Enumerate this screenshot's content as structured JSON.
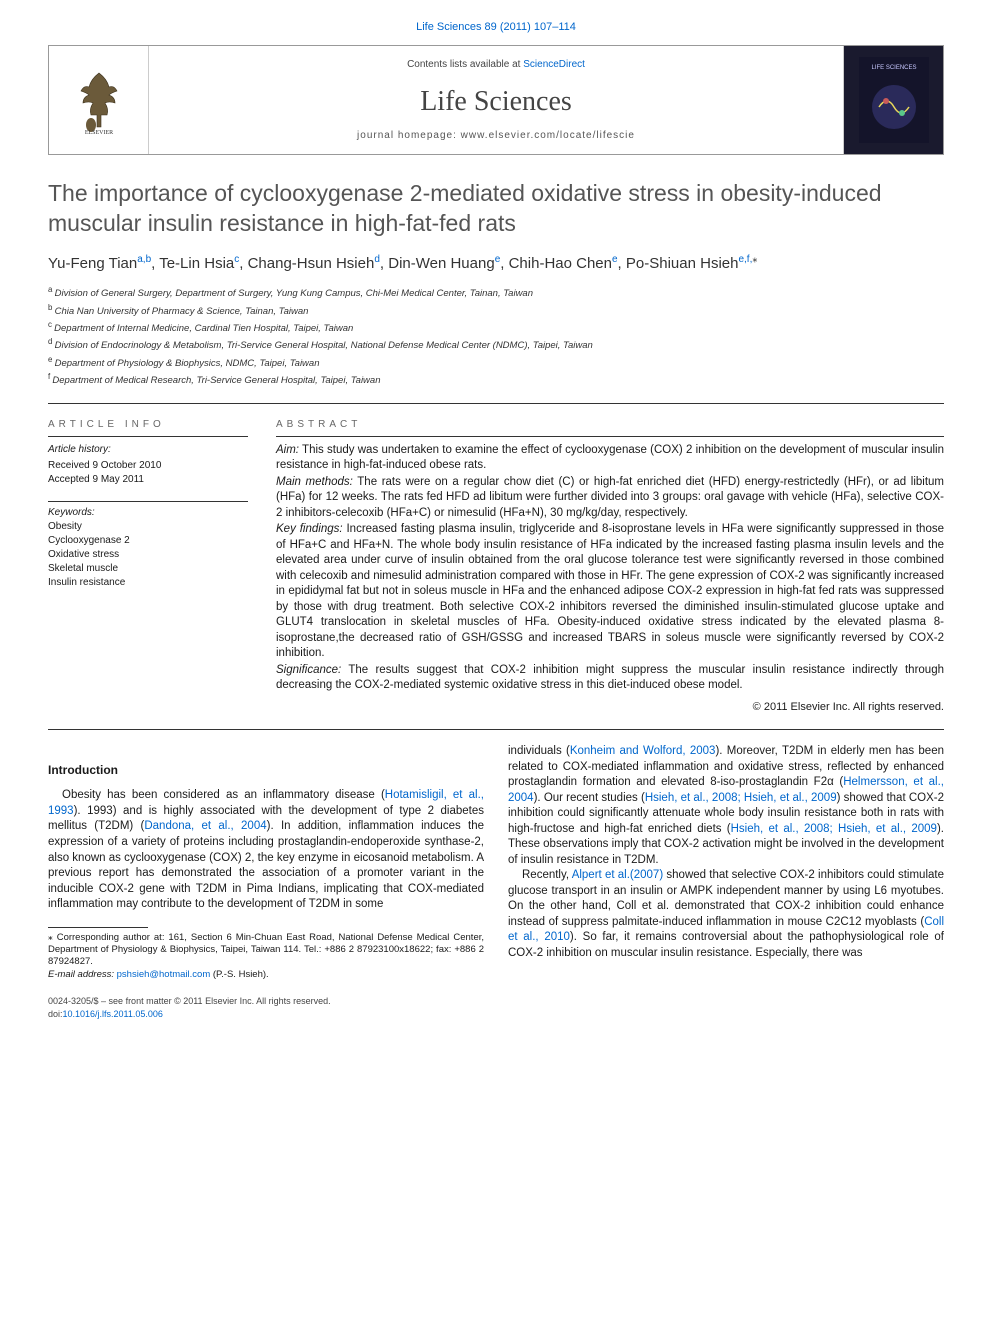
{
  "journal_ref": "Life Sciences 89 (2011) 107–114",
  "header": {
    "contents_prefix": "Contents lists available at ",
    "contents_link": "ScienceDirect",
    "journal_title": "Life Sciences",
    "homepage_prefix": "journal homepage: ",
    "homepage_url": "www.elsevier.com/locate/lifescie",
    "cover_label": "LIFE SCIENCES"
  },
  "article": {
    "title": "The importance of cyclooxygenase 2-mediated oxidative stress in obesity-induced muscular insulin resistance in high-fat-fed rats",
    "authors_html": "Yu-Feng Tian|a,b|, Te-Lin Hsia|c|, Chang-Hsun Hsieh|d|, Din-Wen Huang|e|, Chih-Hao Chen|e|, Po-Shiuan Hsieh|e,f,*|",
    "affiliations": [
      {
        "tag": "a",
        "text": "Division of General Surgery, Department of Surgery, Yung Kung Campus, Chi-Mei Medical Center, Tainan, Taiwan"
      },
      {
        "tag": "b",
        "text": "Chia Nan University of Pharmacy & Science, Tainan, Taiwan"
      },
      {
        "tag": "c",
        "text": "Department of Internal Medicine, Cardinal Tien Hospital, Taipei, Taiwan"
      },
      {
        "tag": "d",
        "text": "Division of Endocrinology & Metabolism, Tri-Service General Hospital, National Defense Medical Center (NDMC), Taipei, Taiwan"
      },
      {
        "tag": "e",
        "text": "Department of Physiology & Biophysics, NDMC, Taipei, Taiwan"
      },
      {
        "tag": "f",
        "text": "Department of Medical Research, Tri-Service General Hospital, Taipei, Taiwan"
      }
    ]
  },
  "info": {
    "heading": "article info",
    "history_label": "Article history:",
    "received": "Received 9 October 2010",
    "accepted": "Accepted 9 May 2011",
    "keywords_label": "Keywords:",
    "keywords": [
      "Obesity",
      "Cyclooxygenase 2",
      "Oxidative stress",
      "Skeletal muscle",
      "Insulin resistance"
    ]
  },
  "abstract": {
    "heading": "abstract",
    "aim_label": "Aim:",
    "aim": " This study was undertaken to examine the effect of cyclooxygenase (COX) 2 inhibition on the development of muscular insulin resistance in high-fat-induced obese rats.",
    "methods_label": "Main methods:",
    "methods": " The rats were on a regular chow diet (C) or high-fat enriched diet (HFD) energy-restrictedly (HFr), or ad libitum (HFa) for 12 weeks. The rats fed HFD ad libitum were further divided into 3 groups: oral gavage with vehicle (HFa), selective COX-2 inhibitors-celecoxib (HFa+C) or nimesulid (HFa+N), 30 mg/kg/day, respectively.",
    "findings_label": "Key findings:",
    "findings": " Increased fasting plasma insulin, triglyceride and 8-isoprostane levels in HFa were significantly suppressed in those of HFa+C and HFa+N. The whole body insulin resistance of HFa indicated by the increased fasting plasma insulin levels and the elevated area under curve of insulin obtained from the oral glucose tolerance test were significantly reversed in those combined with celecoxib and nimesulid administration compared with those in HFr. The gene expression of COX-2 was significantly increased in epididymal fat but not in soleus muscle in HFa and the enhanced adipose COX-2 expression in high-fat fed rats was suppressed by those with drug treatment. Both selective COX-2 inhibitors reversed the diminished insulin-stimulated glucose uptake and GLUT4 translocation in skeletal muscles of HFa. Obesity-induced oxidative stress indicated by the elevated plasma 8-isoprostane,the decreased ratio of GSH/GSSG and increased TBARS in soleus muscle were significantly reversed by COX-2 inhibition.",
    "significance_label": "Significance:",
    "significance": " The results suggest that COX-2 inhibition might suppress the muscular insulin resistance indirectly through decreasing the COX-2-mediated systemic oxidative stress in this diet-induced obese model.",
    "copyright": "© 2011 Elsevier Inc. All rights reserved."
  },
  "intro": {
    "heading": "Introduction",
    "col1_p1_pre": "Obesity has been considered as an inflammatory disease (",
    "col1_link1": "Hotamisligil, et al., 1993",
    "col1_p1_mid1": "). 1993) and is highly associated with the development of type 2 diabetes mellitus (T2DM) (",
    "col1_link2": "Dandona, et al., 2004",
    "col1_p1_post": "). In addition, inflammation induces the expression of a variety of proteins including prostaglandin-endoperoxide synthase-2, also known as cyclooxygenase (COX) 2, the key enzyme in eicosanoid metabolism. A previous report has demonstrated the association of a promoter variant in the inducible COX-2 gene with T2DM in Pima Indians, implicating that COX-mediated inflammation may contribute to the development of T2DM in some",
    "col2_p1_pre": "individuals (",
    "col2_link1": "Konheim and Wolford, 2003",
    "col2_p1_mid1": "). Moreover, T2DM in elderly men has been related to COX-mediated inflammation and oxidative stress, reflected by enhanced prostaglandin formation and elevated 8-iso-prostaglandin F2α (",
    "col2_link2": "Helmersson, et al., 2004",
    "col2_p1_mid2": "). Our recent studies (",
    "col2_link3": "Hsieh, et al., 2008; Hsieh, et al., 2009",
    "col2_p1_mid3": ") showed that COX-2 inhibition could significantly attenuate whole body insulin resistance both in rats with high-fructose and high-fat enriched diets (",
    "col2_link4": "Hsieh, et al., 2008; Hsieh, et al., 2009",
    "col2_p1_post": "). These observations imply that COX-2 activation might be involved in the development of insulin resistance in T2DM.",
    "col2_p2_pre": "Recently, ",
    "col2_link5": "Alpert et al.(2007)",
    "col2_p2_mid": " showed that selective COX-2 inhibitors could stimulate glucose transport in an insulin or AMPK independent manner by using L6 myotubes. On the other hand, Coll et al. demonstrated that COX-2 inhibition could enhance instead of suppress palmitate-induced inflammation in mouse C2C12 myoblasts (",
    "col2_link6": "Coll et al., 2010",
    "col2_p2_post": "). So far, it remains controversial about the pathophysiological role of COX-2 inhibition on muscular insulin resistance. Especially, there was"
  },
  "footnotes": {
    "corresp": "⁎ Corresponding author at: 161, Section 6 Min-Chuan East Road, National Defense Medical Center, Department of Physiology & Biophysics, Taipei, Taiwan 114. Tel.: +886 2 87923100x18622; fax: +886 2 87924827.",
    "email_label": "E-mail address: ",
    "email": "pshsieh@hotmail.com",
    "email_suffix": " (P.-S. Hsieh)."
  },
  "bottom": {
    "issn": "0024-3205/$ – see front matter © 2011 Elsevier Inc. All rights reserved.",
    "doi_label": "doi:",
    "doi": "10.1016/j.lfs.2011.05.006"
  },
  "colors": {
    "link": "#0066cc",
    "text": "#1a1a1a",
    "muted": "#555555",
    "border": "#333333"
  }
}
